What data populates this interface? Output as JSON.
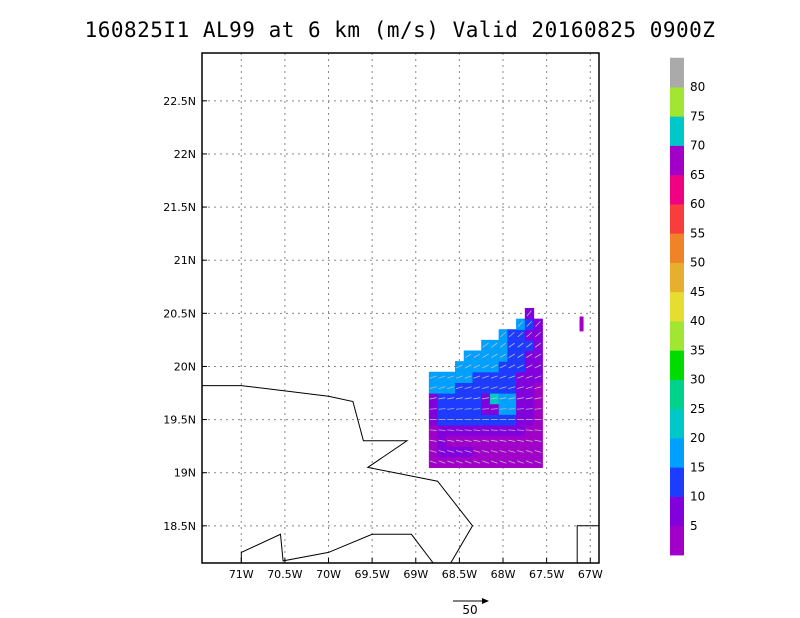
{
  "title": "160825I1 AL99 at 6 km (m/s) Valid 20160825 0900Z",
  "map": {
    "lon_range": [
      -71.45,
      -66.9
    ],
    "lat_range": [
      18.15,
      22.95
    ],
    "lon_ticks": [
      {
        "value": -71,
        "label": "71W"
      },
      {
        "value": -70.5,
        "label": "70.5W"
      },
      {
        "value": -70,
        "label": "70W"
      },
      {
        "value": -69.5,
        "label": "69.5W"
      },
      {
        "value": -69,
        "label": "69W"
      },
      {
        "value": -68.5,
        "label": "68.5W"
      },
      {
        "value": -68,
        "label": "68W"
      },
      {
        "value": -67.5,
        "label": "67.5W"
      },
      {
        "value": -67,
        "label": "67W"
      }
    ],
    "lat_ticks": [
      {
        "value": 18.5,
        "label": "18.5N"
      },
      {
        "value": 19,
        "label": "19N"
      },
      {
        "value": 19.5,
        "label": "19.5N"
      },
      {
        "value": 20,
        "label": "20N"
      },
      {
        "value": 20.5,
        "label": "20.5N"
      },
      {
        "value": 21,
        "label": "21N"
      },
      {
        "value": 21.5,
        "label": "21.5N"
      },
      {
        "value": 22,
        "label": "22N"
      },
      {
        "value": 22.5,
        "label": "22.5N"
      }
    ],
    "coastlines": [
      [
        [
          -71.45,
          19.82
        ],
        [
          -71.0,
          19.82
        ],
        [
          -70.5,
          19.77
        ],
        [
          -70.0,
          19.72
        ],
        [
          -69.72,
          19.67
        ],
        [
          -69.6,
          19.3
        ],
        [
          -69.1,
          19.3
        ],
        [
          -69.55,
          19.05
        ],
        [
          -68.75,
          18.92
        ],
        [
          -68.35,
          18.5
        ],
        [
          -68.6,
          18.15
        ]
      ],
      [
        [
          -71.45,
          18.17
        ]
      ],
      [
        [
          -71.0,
          18.15
        ],
        [
          -71.0,
          18.25
        ],
        [
          -70.55,
          18.42
        ],
        [
          -70.52,
          18.17
        ],
        [
          -70.0,
          18.25
        ],
        [
          -69.5,
          18.42
        ],
        [
          -69.05,
          18.42
        ],
        [
          -68.8,
          18.15
        ]
      ],
      [
        [
          -67.15,
          18.15
        ],
        [
          -67.15,
          18.5
        ],
        [
          -66.9,
          18.5
        ]
      ]
    ],
    "wind_field": {
      "lon_start": -68.85,
      "lat_start": 19.05,
      "cell": 0.1,
      "rows": [
        "0000000000000",
        "0111100000000",
        "0100000000000",
        "0111111111100",
        "1222222222110",
        "1222221133110",
        "1222221433110",
        "3332222222110",
        "3333322222111",
        "xxx3333322211",
        "xxxx333332211",
        "xxxxxx3332221",
        "xxxxxxxx32211",
        "xxxxxxxxxx321",
        "xxxxxxxxxxx1x"
      ],
      "isolated_cells": [
        [
          -67.1,
          20.42,
          0
        ],
        [
          -67.1,
          20.38,
          0
        ]
      ]
    }
  },
  "colorbar": {
    "colors": [
      "#a000c8",
      "#8200dc",
      "#1e3cff",
      "#00a0ff",
      "#00c8c8",
      "#00d28c",
      "#00dc00",
      "#a0e632",
      "#e6dc32",
      "#e6af2d",
      "#f08228",
      "#fa3c3c",
      "#f00082",
      "#a000c8",
      "#00c8c8",
      "#a0e632",
      "#aaaaaa"
    ],
    "labels": [
      "5",
      "10",
      "15",
      "20",
      "25",
      "30",
      "35",
      "40",
      "45",
      "50",
      "55",
      "60",
      "65",
      "70",
      "75",
      "80"
    ]
  },
  "scale_vector": {
    "label": "50"
  }
}
